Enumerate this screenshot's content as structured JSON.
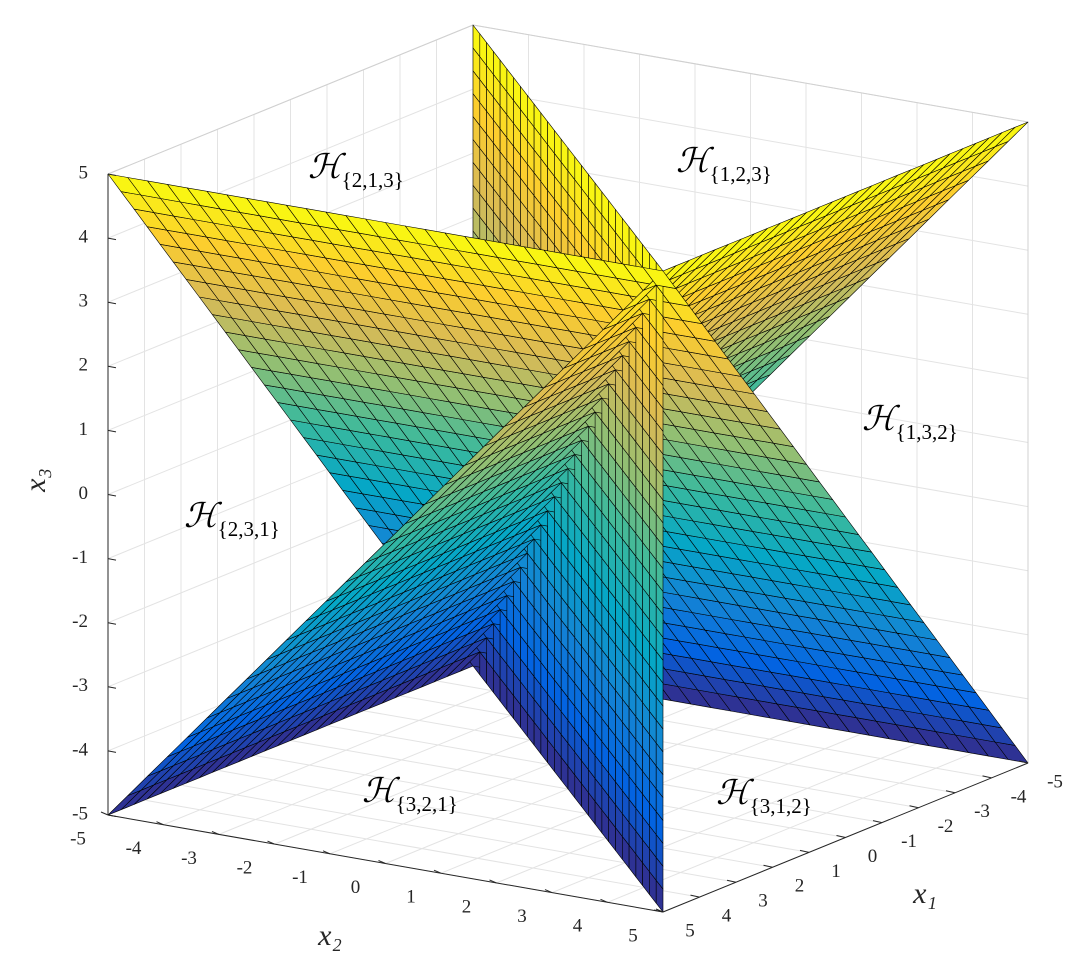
{
  "chart_data": {
    "type": "surface3d",
    "xlabel": "x₁",
    "ylabel": "x₂",
    "zlabel": "x₃",
    "xlim": [
      -5,
      5
    ],
    "ylim": [
      -5,
      5
    ],
    "zlim": [
      -5,
      5
    ],
    "xticks": [
      -5,
      -4,
      -3,
      -2,
      -1,
      0,
      1,
      2,
      3,
      4,
      5
    ],
    "yticks": [
      -5,
      -4,
      -3,
      -2,
      -1,
      0,
      1,
      2,
      3,
      4,
      5
    ],
    "zticks": [
      -5,
      -4,
      -3,
      -2,
      -1,
      0,
      1,
      2,
      3,
      4,
      5
    ],
    "grid": true,
    "colormap": "parula",
    "edgecolor": "#000000",
    "annotations": [
      {
        "symbol": "ℋ",
        "subscript": "{2,1,3}"
      },
      {
        "symbol": "ℋ",
        "subscript": "{1,2,3}"
      },
      {
        "symbol": "ℋ",
        "subscript": "{1,3,2}"
      },
      {
        "symbol": "ℋ",
        "subscript": "{2,3,1}"
      },
      {
        "symbol": "ℋ",
        "subscript": "{3,2,1}"
      },
      {
        "symbol": "ℋ",
        "subscript": "{3,1,2}"
      }
    ]
  }
}
